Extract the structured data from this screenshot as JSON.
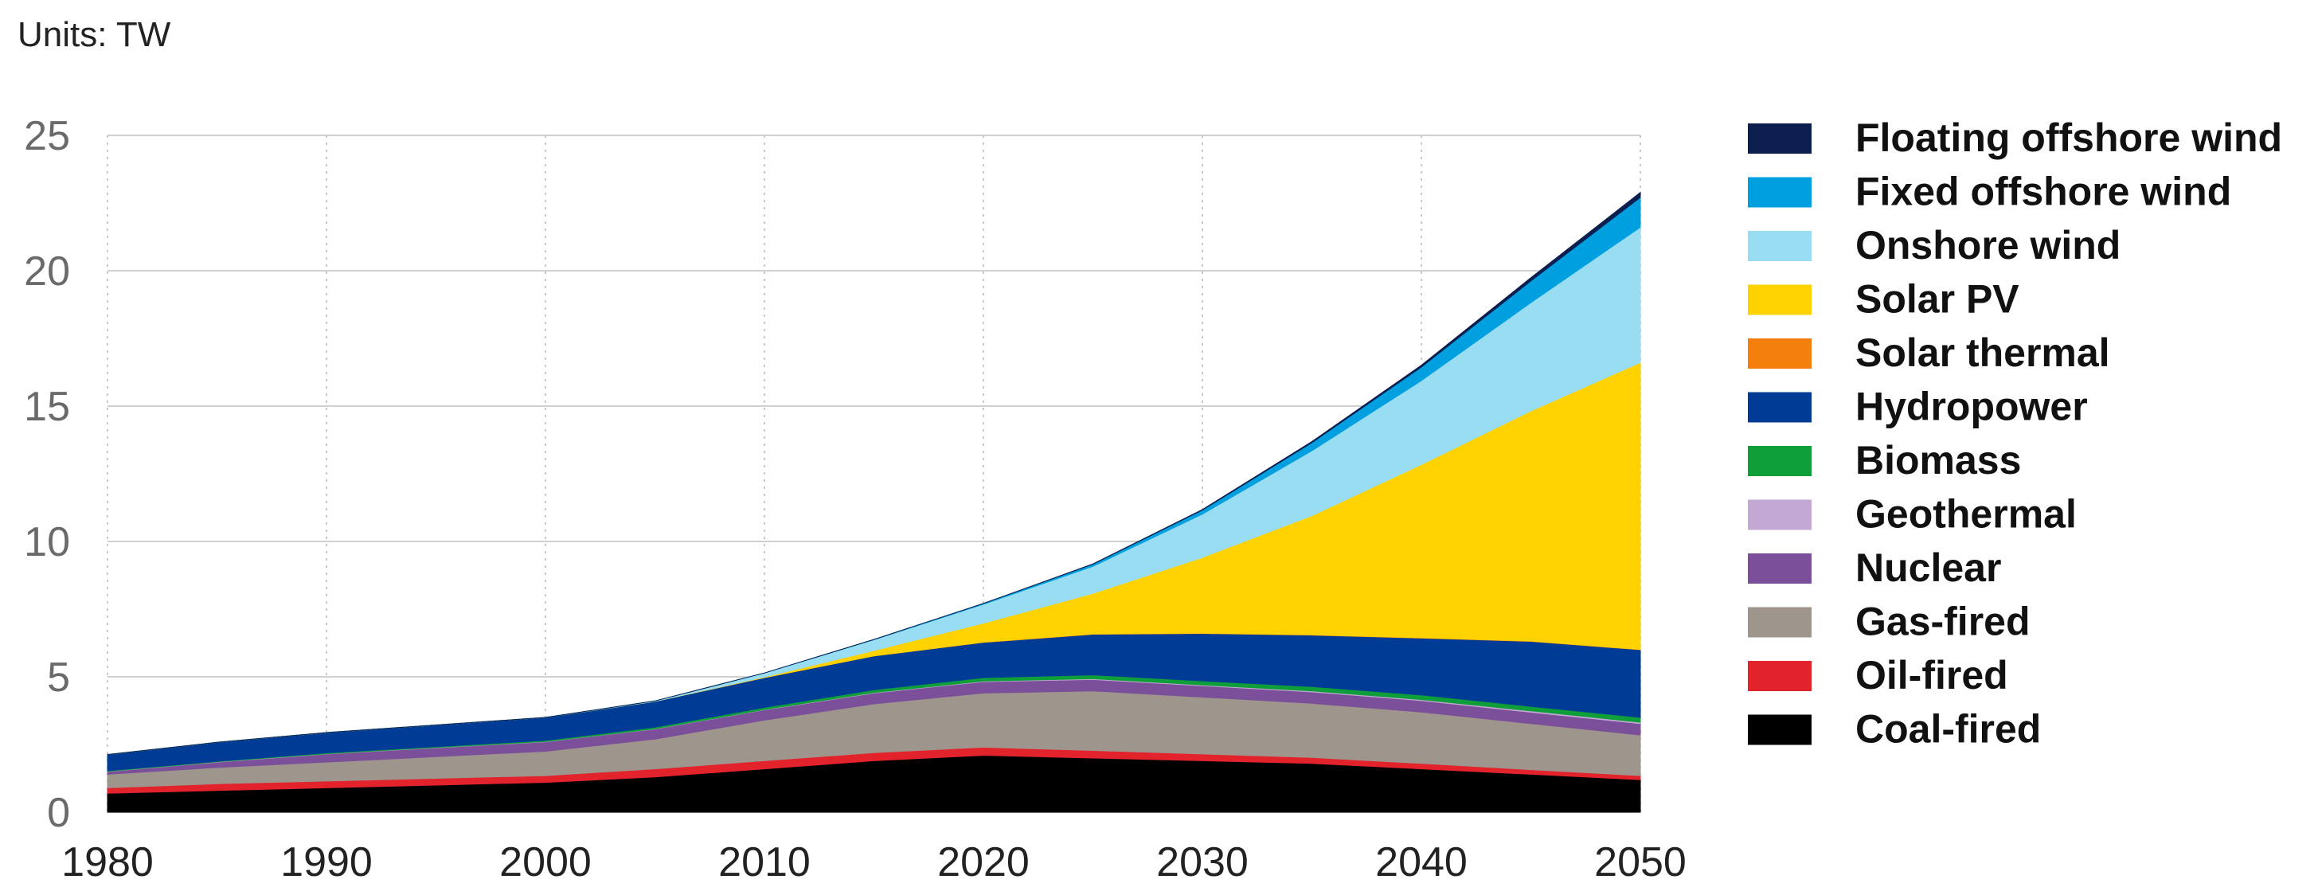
{
  "chart_data": {
    "type": "area",
    "stacked": true,
    "units_label": "Units: TW",
    "x": [
      1980,
      1985,
      1990,
      1995,
      2000,
      2005,
      2010,
      2015,
      2020,
      2025,
      2030,
      2035,
      2040,
      2045,
      2050
    ],
    "xticks": [
      "1980",
      "1990",
      "2000",
      "2010",
      "2020",
      "2030",
      "2040",
      "2050"
    ],
    "yticks": [
      "0",
      "5",
      "10",
      "15",
      "20",
      "25"
    ],
    "ylim": [
      0,
      25
    ],
    "xlim": [
      1980,
      2050
    ],
    "grid": true,
    "legend_position": "right",
    "series": [
      {
        "name": "Coal-fired",
        "color": "#000000",
        "values": [
          0.7,
          0.8,
          0.9,
          1.0,
          1.1,
          1.3,
          1.6,
          1.9,
          2.1,
          2.0,
          1.9,
          1.8,
          1.6,
          1.4,
          1.2
        ]
      },
      {
        "name": "Oil-fired",
        "color": "#e3232c",
        "values": [
          0.2,
          0.25,
          0.25,
          0.25,
          0.25,
          0.3,
          0.3,
          0.3,
          0.3,
          0.28,
          0.25,
          0.22,
          0.2,
          0.17,
          0.15
        ]
      },
      {
        "name": "Gas-fired",
        "color": "#9e958d",
        "values": [
          0.5,
          0.6,
          0.7,
          0.8,
          0.9,
          1.1,
          1.5,
          1.8,
          2.0,
          2.2,
          2.1,
          2.0,
          1.9,
          1.7,
          1.5
        ]
      },
      {
        "name": "Nuclear",
        "color": "#7b4f99",
        "values": [
          0.1,
          0.2,
          0.3,
          0.33,
          0.35,
          0.37,
          0.38,
          0.4,
          0.42,
          0.42,
          0.42,
          0.42,
          0.42,
          0.42,
          0.42
        ]
      },
      {
        "name": "Geothermal",
        "color": "#c2a8d2",
        "values": [
          0.01,
          0.01,
          0.01,
          0.01,
          0.01,
          0.01,
          0.01,
          0.02,
          0.02,
          0.03,
          0.03,
          0.04,
          0.04,
          0.05,
          0.05
        ]
      },
      {
        "name": "Biomass",
        "color": "#0e9e3a",
        "values": [
          0.02,
          0.02,
          0.03,
          0.03,
          0.04,
          0.06,
          0.08,
          0.1,
          0.13,
          0.14,
          0.15,
          0.16,
          0.17,
          0.17,
          0.18
        ]
      },
      {
        "name": "Hydropower",
        "color": "#003c96",
        "values": [
          0.6,
          0.7,
          0.75,
          0.8,
          0.85,
          0.95,
          1.1,
          1.25,
          1.3,
          1.5,
          1.75,
          1.9,
          2.1,
          2.4,
          2.5
        ]
      },
      {
        "name": "Solar thermal",
        "color": "#f57f0d",
        "values": [
          0,
          0,
          0,
          0,
          0,
          0,
          0,
          0,
          0.01,
          0.01,
          0.01,
          0.01,
          0.01,
          0.01,
          0.01
        ]
      },
      {
        "name": "Solar PV",
        "color": "#ffd200",
        "values": [
          0,
          0,
          0,
          0,
          0,
          0,
          0.02,
          0.2,
          0.7,
          1.5,
          2.8,
          4.4,
          6.4,
          8.5,
          10.6
        ]
      },
      {
        "name": "Onshore wind",
        "color": "#99ddf2",
        "values": [
          0,
          0,
          0,
          0,
          0,
          0.02,
          0.15,
          0.4,
          0.7,
          1.0,
          1.6,
          2.4,
          3.1,
          4.0,
          5.0
        ]
      },
      {
        "name": "Fixed offshore wind",
        "color": "#009fe0",
        "values": [
          0,
          0,
          0,
          0,
          0,
          0,
          0,
          0.01,
          0.03,
          0.08,
          0.15,
          0.3,
          0.5,
          0.8,
          1.1
        ]
      },
      {
        "name": "Floating offshore wind",
        "color": "#0c1f4f",
        "values": [
          0,
          0,
          0,
          0,
          0,
          0,
          0,
          0,
          0,
          0.01,
          0.02,
          0.04,
          0.07,
          0.12,
          0.18
        ]
      }
    ]
  }
}
